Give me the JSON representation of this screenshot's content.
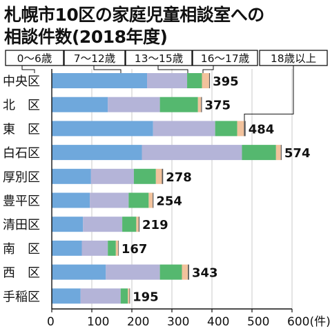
{
  "title": {
    "line1": "札幌市10区の家庭児童相談室への",
    "line2": "相談件数(2018年度)"
  },
  "colors": {
    "age_0_6": "#6fa8dc",
    "age_7_12": "#b4b4d8",
    "age_13_15": "#55b86f",
    "age_16_17": "#f2c29c",
    "age_18_plus": "#555555",
    "text": "#111111",
    "grid": "#c8c8c8"
  },
  "chart_data": {
    "type": "bar",
    "orientation": "horizontal",
    "stacked": true,
    "unit": "件",
    "categories": [
      "中央区",
      "北　区",
      "東　区",
      "白石区",
      "厚別区",
      "豊平区",
      "清田区",
      "南　区",
      "西　区",
      "手稲区"
    ],
    "totals": [
      395,
      375,
      484,
      574,
      278,
      254,
      219,
      167,
      343,
      195
    ],
    "series": [
      {
        "name": "0～6歳",
        "values": [
          238,
          140,
          253,
          225,
          98,
          95,
          78,
          75,
          135,
          72
        ]
      },
      {
        "name": "7～12歳",
        "values": [
          100,
          130,
          155,
          250,
          107,
          97,
          98,
          65,
          135,
          100
        ]
      },
      {
        "name": "13～15歳",
        "values": [
          37,
          95,
          55,
          85,
          55,
          50,
          35,
          20,
          55,
          18
        ]
      },
      {
        "name": "16～17歳",
        "values": [
          18,
          8,
          17,
          12,
          15,
          10,
          6,
          6,
          15,
          4
        ]
      },
      {
        "name": "18歳以上",
        "values": [
          2,
          2,
          4,
          2,
          3,
          2,
          2,
          1,
          3,
          1
        ]
      }
    ],
    "xlim": [
      0,
      600
    ],
    "xticks": [
      0,
      100,
      200,
      300,
      400,
      500,
      600
    ],
    "xtick_labels": [
      "0",
      "100",
      "200",
      "300",
      "400",
      "500",
      "600(件)"
    ],
    "grid": true
  }
}
